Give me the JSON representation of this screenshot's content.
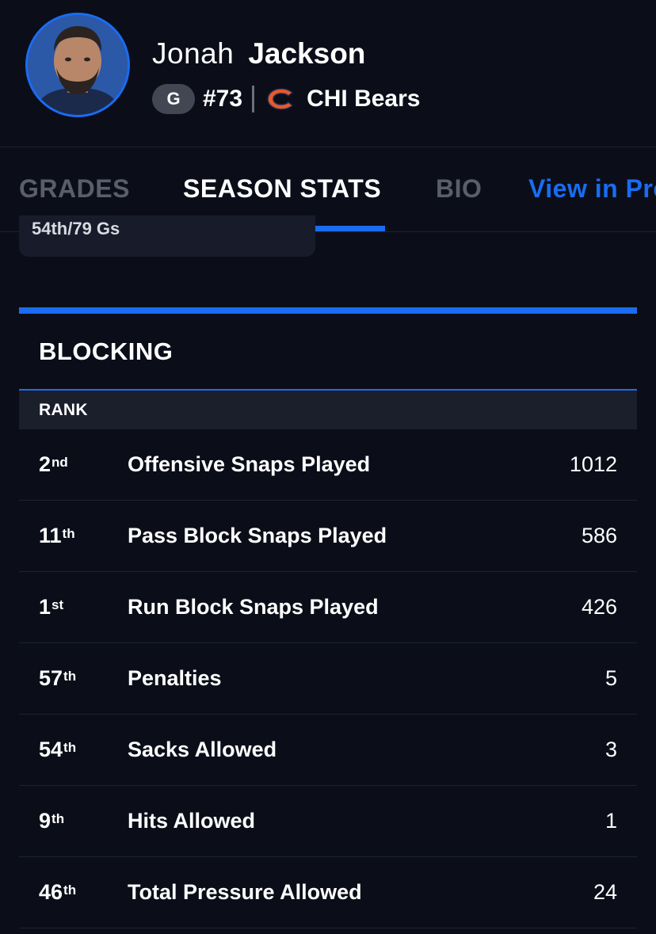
{
  "player": {
    "first_name": "Jonah",
    "last_name": "Jackson",
    "position": "G",
    "number": "#73",
    "team": "CHI Bears"
  },
  "tabs": [
    {
      "label": "GRADES",
      "state": "inactive"
    },
    {
      "label": "SEASON STATS",
      "state": "active"
    },
    {
      "label": "BIO",
      "state": "inactive"
    },
    {
      "label": "View in Pre",
      "state": "link"
    }
  ],
  "previous_card": {
    "text": "54th/79 Gs"
  },
  "section": {
    "title": "BLOCKING",
    "rank_header": "RANK",
    "rows": [
      {
        "rank": "2",
        "suffix": "nd",
        "label": "Offensive Snaps Played",
        "value": "1012"
      },
      {
        "rank": "11",
        "suffix": "th",
        "label": "Pass Block Snaps Played",
        "value": "586"
      },
      {
        "rank": "1",
        "suffix": "st",
        "label": "Run Block Snaps Played",
        "value": "426"
      },
      {
        "rank": "57",
        "suffix": "th",
        "label": "Penalties",
        "value": "5"
      },
      {
        "rank": "54",
        "suffix": "th",
        "label": "Sacks Allowed",
        "value": "3"
      },
      {
        "rank": "9",
        "suffix": "th",
        "label": "Hits Allowed",
        "value": "1"
      },
      {
        "rank": "46",
        "suffix": "th",
        "label": "Total Pressure Allowed",
        "value": "24"
      }
    ]
  },
  "colors": {
    "background": "#0b0e19",
    "accent": "#1a6cf2",
    "team_orange": "#e8592b",
    "row_header": "#1b1e2b"
  },
  "icons": {
    "team_logo": "bears-c-logo-icon",
    "avatar": "player-avatar"
  }
}
